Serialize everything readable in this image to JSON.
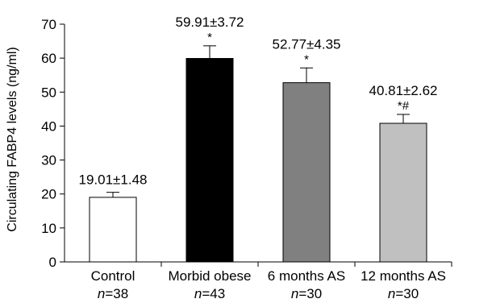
{
  "chart_data": {
    "type": "bar",
    "ylabel": "Circulating FABP4 levels (ng/ml)",
    "ylim": [
      0,
      70
    ],
    "yticks": [
      0,
      10,
      20,
      30,
      40,
      50,
      60,
      70
    ],
    "grid": false,
    "legend": "none",
    "categories": [
      "Control",
      "Morbid obese",
      "6 months AS",
      "12 months AS"
    ],
    "n_labels": [
      "n=38",
      "n=43",
      "n=30",
      "n=30"
    ],
    "n_prefix": "n",
    "n_values": [
      "38",
      "43",
      "30",
      "30"
    ],
    "values": [
      19.01,
      59.91,
      52.77,
      40.81
    ],
    "errors": [
      1.48,
      3.72,
      4.35,
      2.62
    ],
    "value_labels": [
      "19.01±1.48",
      "59.91±3.72",
      "52.77±4.35",
      "40.81±2.62"
    ],
    "significance": [
      "",
      "*",
      "*",
      "*#"
    ],
    "bar_colors": [
      "#ffffff",
      "#000000",
      "#808080",
      "#c0c0c0"
    ],
    "stroke_color": "#000000"
  }
}
